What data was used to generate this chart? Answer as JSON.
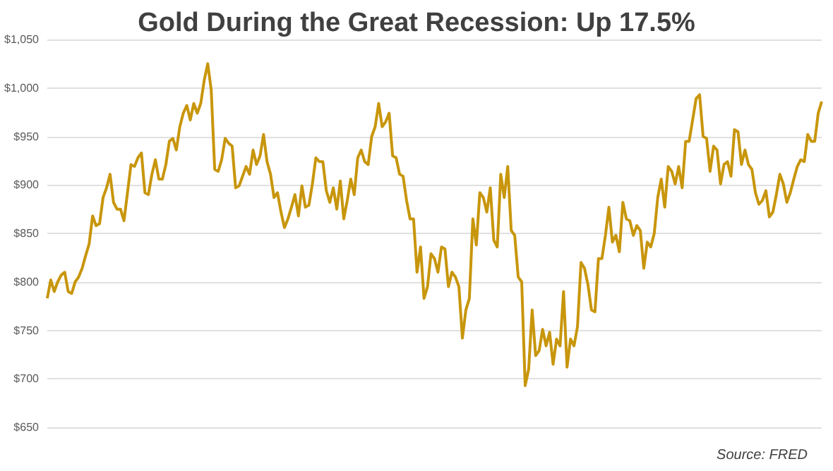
{
  "chart_data": {
    "type": "line",
    "title": "Gold During the Great Recession: Up 17.5%",
    "categories": [
      null,
      null,
      null,
      null,
      null,
      null,
      null,
      null,
      null,
      null,
      null,
      null,
      null,
      null,
      null,
      null,
      null,
      null,
      null,
      null,
      null,
      null,
      null,
      null,
      null,
      null,
      null,
      null,
      null,
      null,
      null,
      null,
      null,
      null,
      null,
      null,
      null,
      null,
      null,
      null,
      null,
      null,
      null,
      null,
      null,
      null,
      null,
      null,
      null,
      null,
      null,
      null,
      null,
      null,
      null,
      null,
      null,
      null,
      null,
      null,
      null,
      null,
      null,
      null,
      null,
      null,
      null,
      null,
      null,
      null,
      null,
      null,
      null,
      null,
      null,
      null,
      null,
      null,
      null,
      null,
      null,
      null,
      null,
      null,
      null,
      null,
      null,
      null,
      null,
      null,
      null,
      null,
      null,
      null,
      null,
      null,
      null,
      null,
      null,
      null,
      null,
      null,
      null,
      null,
      null,
      null,
      null,
      null,
      null,
      null,
      null,
      null,
      null,
      null,
      null,
      null,
      null,
      null,
      null,
      null,
      null,
      null,
      null,
      null,
      null,
      null,
      null,
      null,
      null,
      null,
      null,
      null,
      null,
      null,
      null,
      null,
      null,
      null,
      null,
      null,
      null,
      null,
      null,
      null,
      null,
      null,
      null,
      null,
      null,
      null,
      null,
      null,
      null,
      null,
      null,
      null,
      null,
      null,
      null,
      null,
      null,
      null,
      null,
      null,
      null,
      null,
      null,
      null,
      null,
      null,
      null,
      null,
      null,
      null,
      null,
      null,
      null,
      null,
      null,
      null,
      null,
      null,
      null,
      null,
      null,
      null,
      null,
      null,
      null,
      null,
      null,
      null,
      null,
      null,
      null,
      null,
      null,
      null,
      null,
      null,
      null,
      null,
      null,
      null,
      null,
      null,
      null,
      null,
      null,
      null,
      null,
      null,
      null,
      null,
      null,
      null,
      null,
      null,
      null,
      null,
      null,
      null,
      null
    ],
    "series": [
      {
        "color": "#c8960c",
        "values": [
          783,
          802,
          790,
          800,
          807,
          810,
          790,
          788,
          800,
          805,
          814,
          827,
          839,
          868,
          858,
          860,
          887,
          897,
          911,
          882,
          875,
          875,
          863,
          892,
          921,
          919,
          928,
          933,
          892,
          890,
          911,
          926,
          906,
          906,
          921,
          945,
          948,
          936,
          960,
          974,
          982,
          967,
          984,
          974,
          984,
          1008,
          1025,
          998,
          916,
          914,
          926,
          948,
          943,
          940,
          897,
          899,
          909,
          919,
          911,
          936,
          921,
          930,
          952,
          924,
          911,
          887,
          892,
          872,
          856,
          865,
          877,
          890,
          868,
          899,
          877,
          879,
          901,
          928,
          924,
          924,
          894,
          882,
          897,
          875,
          904,
          865,
          884,
          906,
          890,
          928,
          936,
          924,
          921,
          950,
          960,
          984,
          960,
          965,
          974,
          930,
          928,
          911,
          909,
          884,
          865,
          865,
          810,
          836,
          783,
          795,
          829,
          824,
          810,
          836,
          834,
          795,
          810,
          805,
          795,
          742,
          771,
          783,
          865,
          838,
          892,
          887,
          872,
          897,
          843,
          836,
          911,
          887,
          919,
          853,
          848,
          805,
          800,
          693,
          710,
          771,
          724,
          729,
          751,
          734,
          748,
          715,
          741,
          734,
          790,
          712,
          741,
          734,
          754,
          820,
          814,
          797,
          771,
          769,
          824,
          824,
          848,
          877,
          841,
          848,
          831,
          882,
          865,
          863,
          848,
          858,
          853,
          814,
          841,
          836,
          850,
          887,
          906,
          877,
          919,
          914,
          901,
          919,
          897,
          945,
          945,
          967,
          989,
          993,
          950,
          948,
          914,
          940,
          936,
          901,
          921,
          924,
          909,
          957,
          955,
          921,
          936,
          921,
          916,
          892,
          880,
          884,
          894,
          867,
          872,
          890,
          911,
          901,
          882,
          892,
          906,
          919,
          926,
          924,
          952,
          945,
          945,
          974,
          986
        ]
      }
    ],
    "ylim": [
      650,
      1050
    ],
    "yticks": [
      {
        "value": 650,
        "label": "$650"
      },
      {
        "value": 700,
        "label": "$700"
      },
      {
        "value": 750,
        "label": "$750"
      },
      {
        "value": 800,
        "label": "$800"
      },
      {
        "value": 850,
        "label": "$850"
      },
      {
        "value": 900,
        "label": "$900"
      },
      {
        "value": 950,
        "label": "$950"
      },
      {
        "value": 1000,
        "label": "$1,000"
      },
      {
        "value": 1050,
        "label": "$1,050"
      }
    ],
    "grid": "y",
    "marker": "none",
    "line_style": "solid",
    "annotations": [
      "Source: FRED"
    ]
  }
}
